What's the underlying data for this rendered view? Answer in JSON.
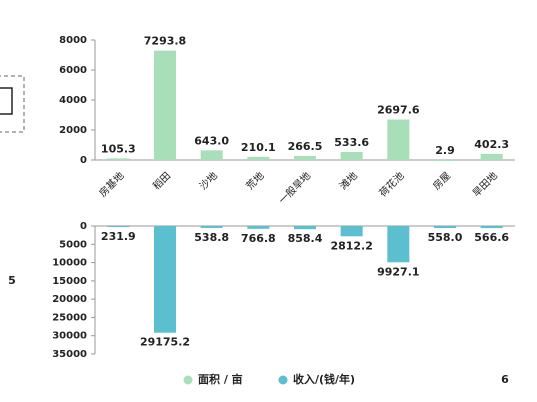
{
  "page_numbers": [
    "5",
    "6"
  ],
  "chart_data": [
    {
      "type": "bar",
      "categories": [
        "房基地",
        "稻田",
        "沙地",
        "荒地",
        "一般旱地",
        "滩地",
        "荷花池",
        "房屋",
        "旱田地"
      ],
      "series": [
        {
          "name": "面积 / 亩",
          "color": "#a8dfb9",
          "values": [
            105.3,
            7293.8,
            643.0,
            210.1,
            266.5,
            533.6,
            2697.6,
            2.9,
            402.3
          ],
          "value_labels": [
            "105.3",
            "7293.8",
            "643.0",
            "210.1",
            "266.5",
            "533.6",
            "2697.6",
            "2.9",
            "402.3"
          ]
        }
      ],
      "ylim": [
        0,
        8000
      ],
      "yticks": [
        0,
        2000,
        4000,
        6000,
        8000
      ]
    },
    {
      "type": "bar",
      "inverted": true,
      "series": [
        {
          "name": "收入/(钱/年)",
          "color": "#5bbfd0",
          "values": [
            231.9,
            29175.2,
            538.8,
            766.8,
            858.4,
            2812.2,
            9927.1,
            558.0,
            566.6
          ],
          "value_labels": [
            "231.9",
            "29175.2",
            "538.8",
            "766.8",
            "858.4",
            "2812.2",
            "9927.1",
            "558.0",
            "566.6"
          ]
        }
      ],
      "ylim": [
        0,
        35000
      ],
      "yticks": [
        0,
        5000,
        10000,
        15000,
        20000,
        25000,
        30000,
        35000
      ]
    }
  ]
}
